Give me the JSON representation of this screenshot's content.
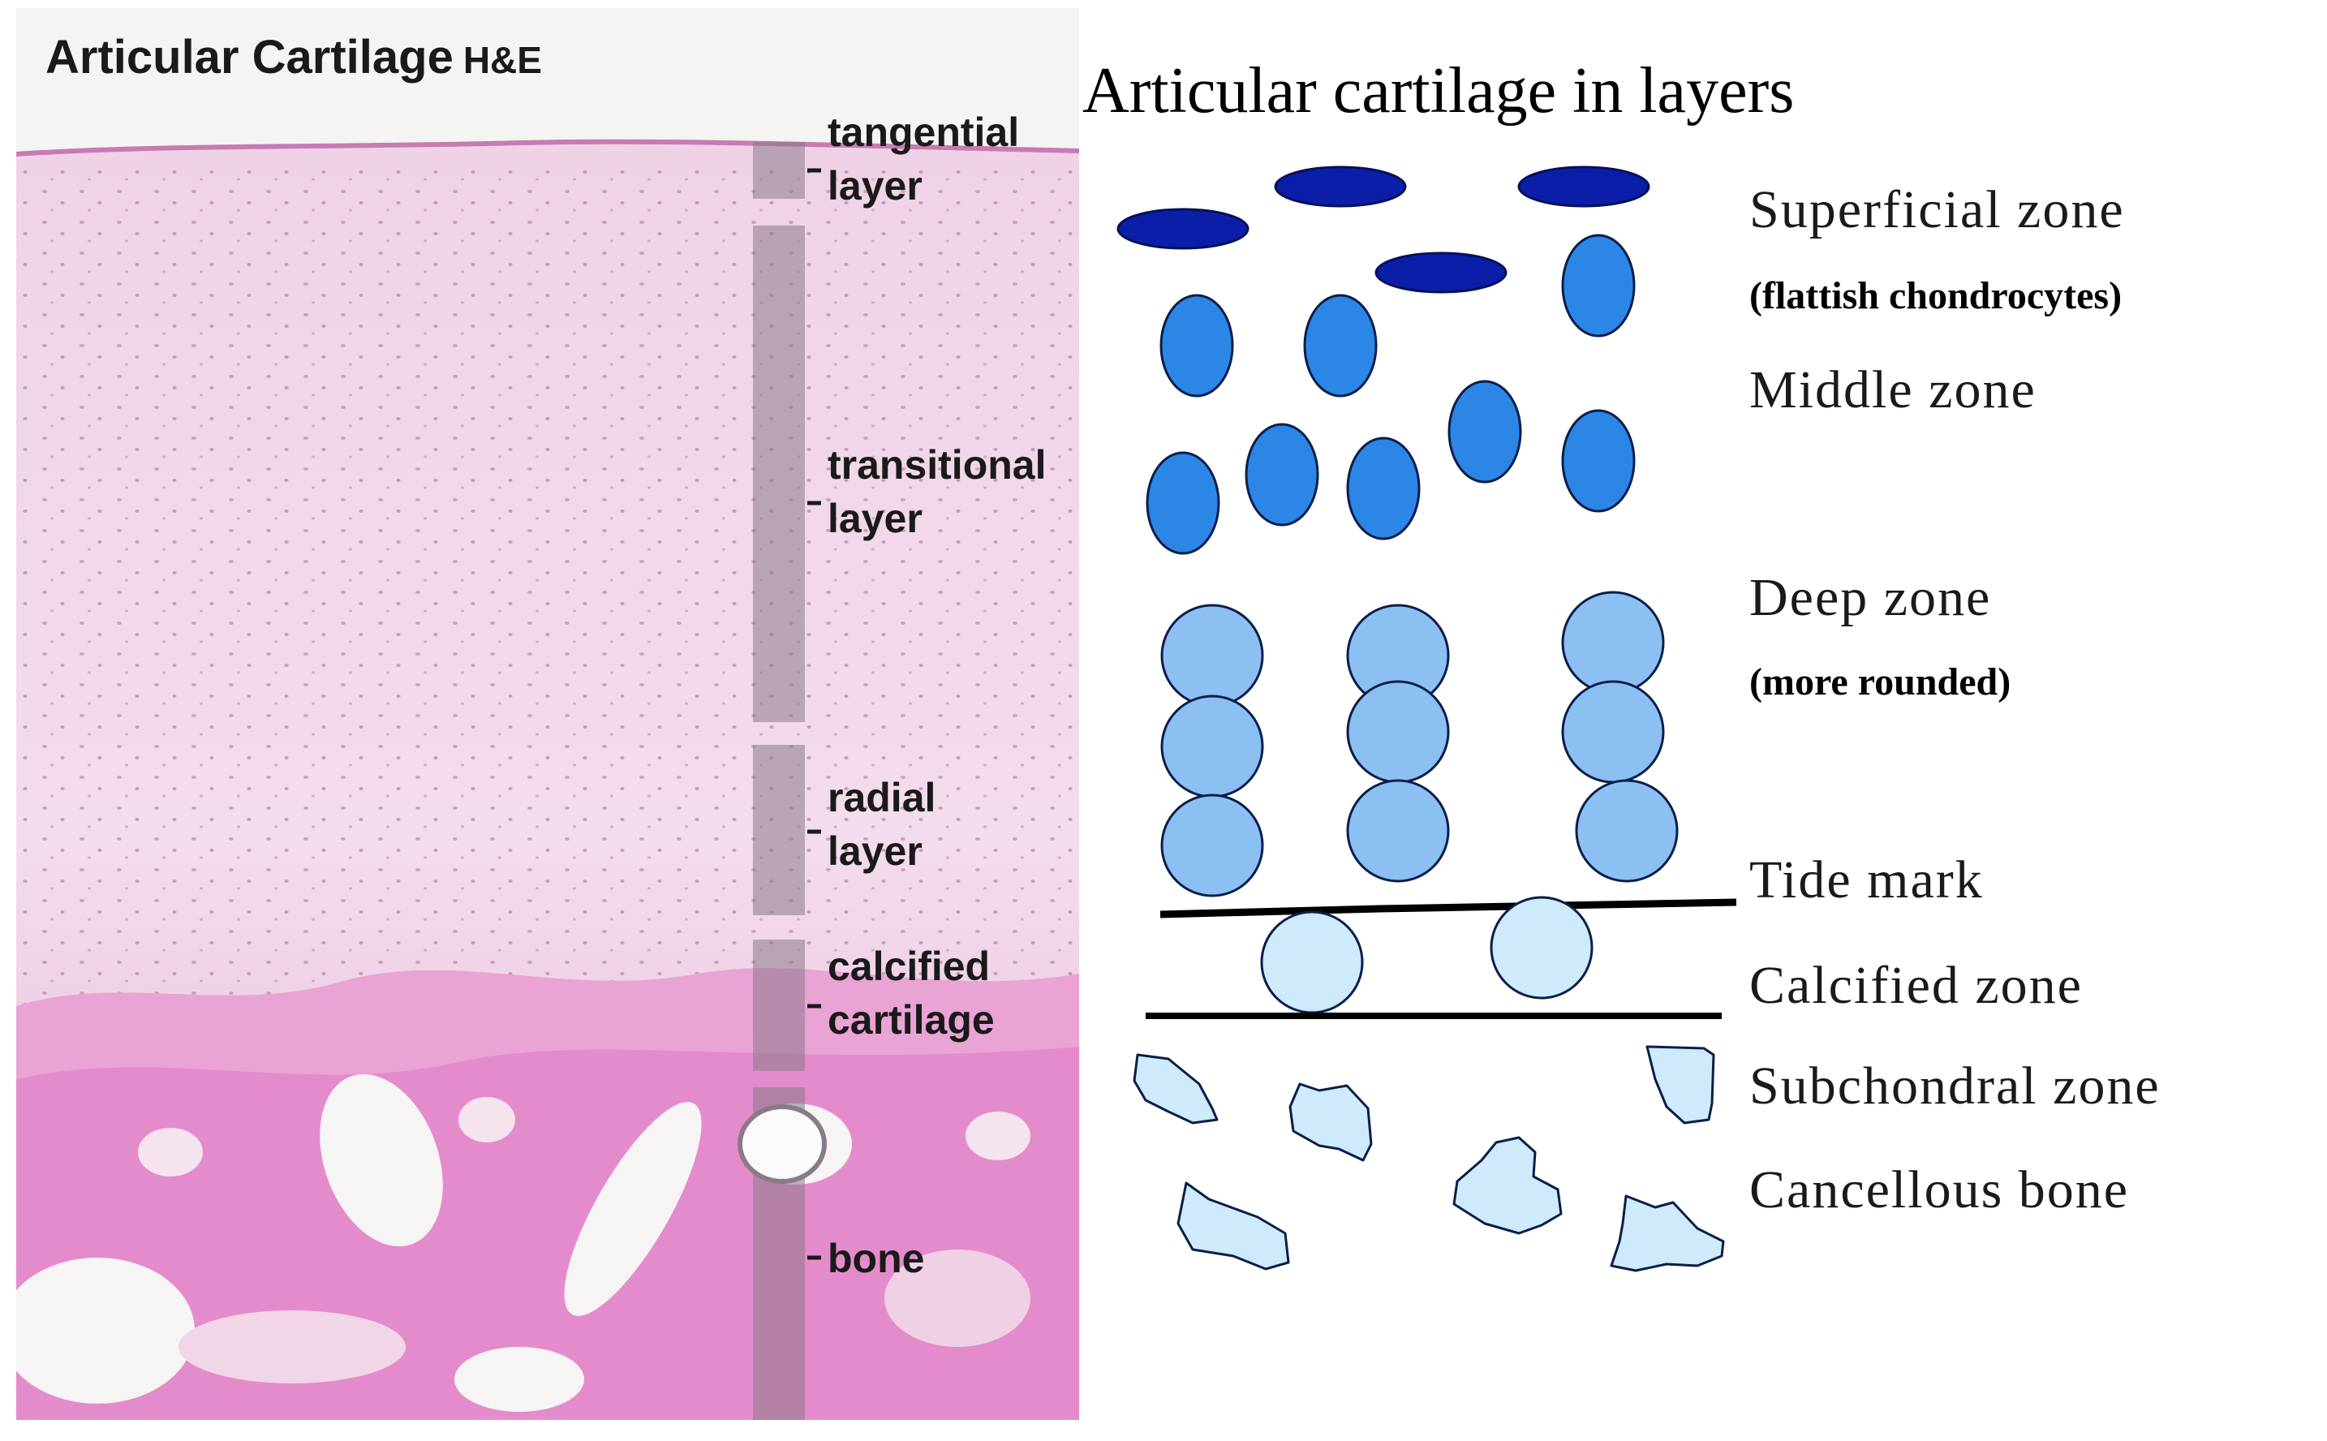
{
  "histology": {
    "title": "Articular Cartilage",
    "stain": "H&E",
    "layers": [
      {
        "line1": "tangential",
        "line2": "layer"
      },
      {
        "line1": "transitional",
        "line2": "layer"
      },
      {
        "line1": "radial",
        "line2": "layer"
      },
      {
        "line1": "calcified",
        "line2": "cartilage"
      },
      {
        "line1": "bone",
        "line2": ""
      }
    ],
    "colors": {
      "matrix_light": "#f1d8ea",
      "matrix_mid": "#ecc6e0",
      "bone_pink": "#e68ecd",
      "band_gray": "#8a7a88"
    }
  },
  "diagram": {
    "title": "Articular cartilage in layers",
    "zones": [
      {
        "label": "Superficial zone",
        "note": "(flattish chondrocytes)"
      },
      {
        "label": "Middle zone",
        "note": ""
      },
      {
        "label": "Deep zone",
        "note": "(more rounded)"
      },
      {
        "label": "Tide mark",
        "note": ""
      },
      {
        "label": "Calcified zone",
        "note": ""
      },
      {
        "label": "Subchondral zone",
        "note": ""
      },
      {
        "label": "Cancellous bone",
        "note": ""
      }
    ],
    "colors": {
      "superficial": "#0a1ea8",
      "middle": "#2b86e6",
      "deep": "#8cc0f2",
      "calcified": "#cfeafb",
      "bone": "#cfeafb",
      "outline": "#0a1e4a"
    }
  }
}
